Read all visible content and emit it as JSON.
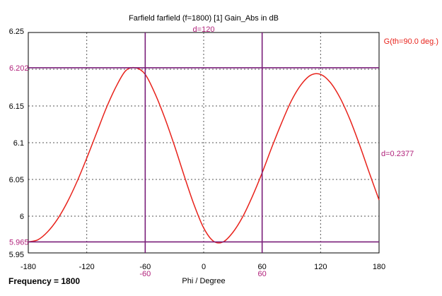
{
  "chart_data": {
    "type": "line",
    "title": "Farfield farfield (f=1800) [1] Gain_Abs in dB",
    "xlabel": "Phi / Degree",
    "ylabel": "",
    "xlim": [
      -180,
      180
    ],
    "ylim": [
      5.95,
      6.25
    ],
    "x_ticks": [
      -180,
      -120,
      -60,
      0,
      60,
      120,
      180
    ],
    "x_tick_labels": [
      "-180",
      "-120",
      "-60",
      "0",
      "60",
      "120",
      "180"
    ],
    "y_ticks": [
      5.95,
      6.0,
      6.05,
      6.1,
      6.15,
      6.2,
      6.25
    ],
    "y_tick_labels": [
      "5.95",
      "6",
      "6.05",
      "6.1",
      "6.15",
      "",
      "6.25"
    ],
    "grid": true,
    "legend_position": "top-right",
    "colors": {
      "series": "#e8221b",
      "markers": "#7a1f7a",
      "marker_label": "#b0207a"
    },
    "series": [
      {
        "name": "G(th=90.0 deg.)",
        "x": [
          -180,
          -170,
          -160,
          -150,
          -140,
          -130,
          -120,
          -110,
          -100,
          -90,
          -80,
          -70,
          -60,
          -50,
          -40,
          -30,
          -20,
          -10,
          0,
          10,
          20,
          30,
          40,
          50,
          60,
          70,
          80,
          90,
          100,
          110,
          120,
          130,
          140,
          150,
          160,
          170,
          180
        ],
        "y": [
          5.965,
          5.968,
          5.979,
          5.996,
          6.019,
          6.047,
          6.079,
          6.113,
          6.147,
          6.176,
          6.198,
          6.202,
          6.193,
          6.167,
          6.134,
          6.096,
          6.055,
          6.016,
          5.984,
          5.966,
          5.965,
          5.978,
          5.999,
          6.027,
          6.059,
          6.094,
          6.127,
          6.157,
          6.179,
          6.192,
          6.193,
          6.182,
          6.161,
          6.132,
          6.097,
          6.059,
          6.022
        ]
      }
    ],
    "markers": {
      "vertical": [
        {
          "x": -60,
          "label": "-60"
        },
        {
          "x": 60,
          "label": "60"
        }
      ],
      "horizontal": [
        {
          "y": 6.202,
          "label": "6.202"
        },
        {
          "y": 5.965,
          "label": "5.965"
        }
      ],
      "dx_label": "d=120",
      "dy_label": "d=0.2377"
    }
  },
  "footer": {
    "frequency_label": "Frequency = 1800"
  }
}
